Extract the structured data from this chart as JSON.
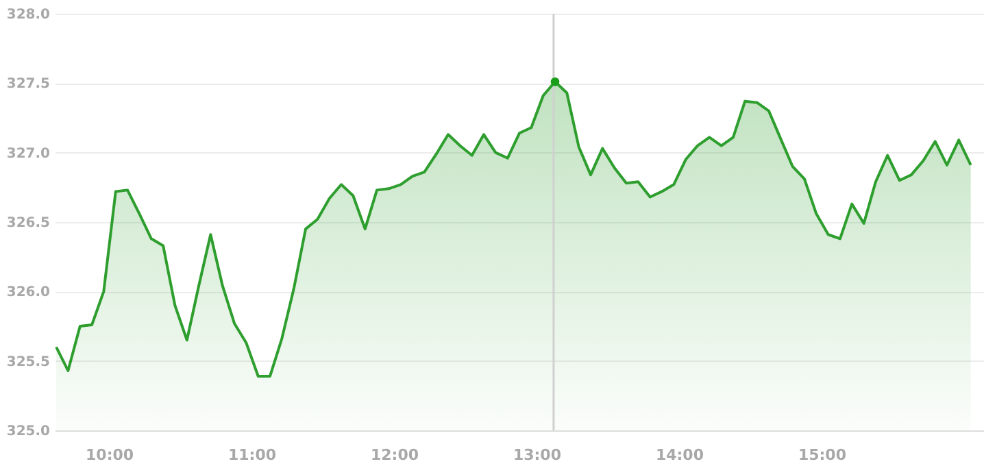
{
  "chart_data": {
    "type": "area",
    "x": [
      9.63,
      9.713,
      9.797,
      9.88,
      9.963,
      10.047,
      10.13,
      10.213,
      10.297,
      10.38,
      10.463,
      10.547,
      10.63,
      10.713,
      10.797,
      10.88,
      10.963,
      11.047,
      11.13,
      11.213,
      11.297,
      11.38,
      11.463,
      11.547,
      11.63,
      11.713,
      11.797,
      11.88,
      11.963,
      12.047,
      12.13,
      12.213,
      12.297,
      12.38,
      12.463,
      12.547,
      12.63,
      12.713,
      12.797,
      12.88,
      12.963,
      13.047,
      13.13,
      13.213,
      13.297,
      13.38,
      13.463,
      13.547,
      13.63,
      13.713,
      13.797,
      13.88,
      13.963,
      14.047,
      14.13,
      14.213,
      14.297,
      14.38,
      14.463,
      14.547,
      14.63,
      14.713,
      14.797,
      14.88,
      14.963,
      15.047,
      15.13,
      15.213,
      15.297,
      15.38,
      15.463,
      15.547,
      15.63,
      15.713,
      15.797,
      15.88,
      15.963,
      16.047
    ],
    "series": [
      {
        "color": "#2e9e2e",
        "values": [
          325.6,
          325.43,
          325.75,
          325.76,
          326.0,
          326.72,
          326.73,
          326.56,
          326.38,
          326.33,
          325.9,
          325.65,
          326.04,
          326.41,
          326.04,
          325.77,
          325.63,
          325.39,
          325.39,
          325.66,
          326.02,
          326.45,
          326.52,
          326.67,
          326.77,
          326.69,
          326.45,
          326.73,
          326.74,
          326.77,
          326.83,
          326.86,
          326.99,
          327.13,
          327.05,
          326.98,
          327.13,
          327.0,
          326.96,
          327.14,
          327.18,
          327.41,
          327.51,
          327.43,
          327.04,
          326.84,
          327.03,
          326.89,
          326.78,
          326.79,
          326.68,
          326.72,
          326.77,
          326.95,
          327.05,
          327.11,
          327.05,
          327.11,
          327.37,
          327.36,
          327.3,
          327.1,
          326.9,
          326.81,
          326.56,
          326.41,
          326.38,
          326.63,
          326.49,
          326.79,
          326.98,
          326.8,
          326.84,
          326.94,
          327.08,
          326.91,
          327.09,
          326.91
        ]
      },
      {
        "type": "scatter",
        "color": "#1a9e1a",
        "x": [
          13.13
        ],
        "values": [
          327.51
        ]
      }
    ],
    "xlim": [
      9.62,
      16.14
    ],
    "xticks": [
      {
        "value": 10,
        "label": "10:00"
      },
      {
        "value": 11,
        "label": "11:00"
      },
      {
        "value": 12,
        "label": "12:00"
      },
      {
        "value": 13,
        "label": "13:00"
      },
      {
        "value": 14,
        "label": "14:00"
      },
      {
        "value": 15,
        "label": "15:00"
      }
    ],
    "ylim": [
      325,
      328
    ],
    "yticks": [
      {
        "value": 325,
        "label": "325.0"
      },
      {
        "value": 325.5,
        "label": "325.5"
      },
      {
        "value": 326,
        "label": "326.0"
      },
      {
        "value": 326.5,
        "label": "326.5"
      },
      {
        "value": 327,
        "label": "327.0"
      },
      {
        "value": 327.5,
        "label": "327.5"
      },
      {
        "value": 328,
        "label": "328.0"
      }
    ],
    "ref_lines": [
      {
        "axis": "x",
        "value": 13.12,
        "color": "#d0d0d0"
      }
    ],
    "grid": "y"
  }
}
